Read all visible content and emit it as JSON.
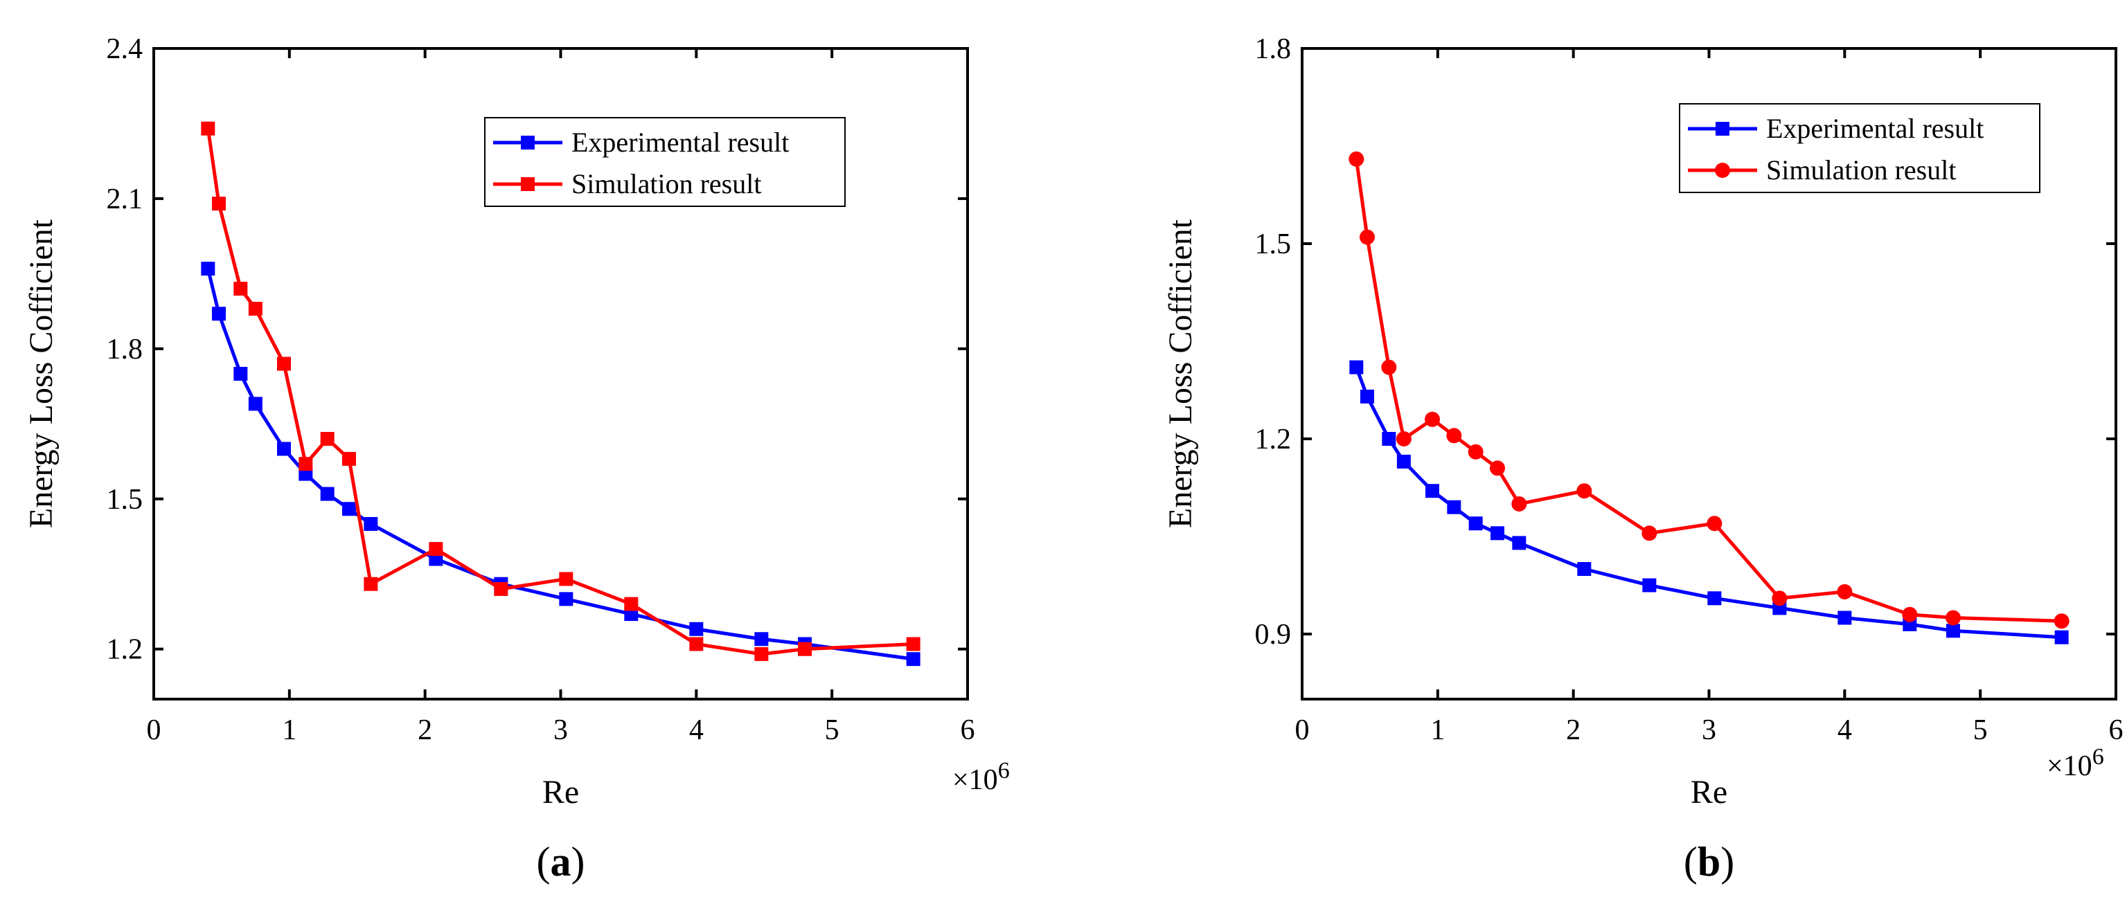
{
  "chart_data": [
    {
      "type": "line",
      "panel_label": "a",
      "xlabel": "Re",
      "ylabel": "Energy Loss Cofficient",
      "x_multiplier": "×10",
      "x_multiplier_exp": "6",
      "xlim": [
        0,
        6
      ],
      "ylim": [
        1.1,
        2.4
      ],
      "xticks": [
        0,
        1,
        2,
        3,
        4,
        5,
        6
      ],
      "yticks": [
        1.2,
        1.5,
        1.8,
        2.1,
        2.4
      ],
      "ytick_labels": [
        "1.2",
        "1.5",
        "1.8",
        "2.1",
        "2.4"
      ],
      "legend_position": "top-right",
      "series": [
        {
          "name": "Experimental result",
          "color": "#0000ff",
          "marker": "square",
          "x": [
            0.4,
            0.48,
            0.64,
            0.75,
            0.96,
            1.12,
            1.28,
            1.44,
            1.6,
            2.08,
            2.56,
            3.04,
            3.52,
            4.0,
            4.48,
            4.8,
            5.6
          ],
          "y": [
            1.96,
            1.87,
            1.75,
            1.69,
            1.6,
            1.55,
            1.51,
            1.48,
            1.45,
            1.38,
            1.33,
            1.3,
            1.27,
            1.24,
            1.22,
            1.21,
            1.18
          ]
        },
        {
          "name": "Simulation    result",
          "color": "#ff0000",
          "marker": "square",
          "x": [
            0.4,
            0.48,
            0.64,
            0.75,
            0.96,
            1.12,
            1.28,
            1.44,
            1.6,
            2.08,
            2.56,
            3.04,
            3.52,
            4.0,
            4.48,
            4.8,
            5.6
          ],
          "y": [
            2.24,
            2.09,
            1.92,
            1.88,
            1.77,
            1.57,
            1.62,
            1.58,
            1.33,
            1.4,
            1.32,
            1.34,
            1.29,
            1.21,
            1.19,
            1.2,
            1.21
          ]
        }
      ]
    },
    {
      "type": "line",
      "panel_label": "b",
      "xlabel": "Re",
      "ylabel": "Energy Loss Cofficient",
      "x_multiplier": "×10",
      "x_multiplier_exp": "6",
      "xlim": [
        0,
        6
      ],
      "ylim": [
        0.8,
        1.8
      ],
      "xticks": [
        0,
        1,
        2,
        3,
        4,
        5,
        6
      ],
      "yticks": [
        0.9,
        1.2,
        1.5,
        1.8
      ],
      "ytick_labels": [
        "0.9",
        "1.2",
        "1.5",
        "1.8"
      ],
      "legend_position": "top-right",
      "series": [
        {
          "name": "Experimental result",
          "color": "#0000ff",
          "marker": "square",
          "x": [
            0.4,
            0.48,
            0.64,
            0.75,
            0.96,
            1.12,
            1.28,
            1.44,
            1.6,
            2.08,
            2.56,
            3.04,
            3.52,
            4.0,
            4.48,
            4.8,
            5.6
          ],
          "y": [
            1.31,
            1.265,
            1.2,
            1.165,
            1.12,
            1.095,
            1.07,
            1.055,
            1.04,
            1.0,
            0.975,
            0.955,
            0.94,
            0.925,
            0.915,
            0.905,
            0.895
          ]
        },
        {
          "name": "Simulation    result",
          "color": "#ff0000",
          "marker": "circle",
          "x": [
            0.4,
            0.48,
            0.64,
            0.75,
            0.96,
            1.12,
            1.28,
            1.44,
            1.6,
            2.08,
            2.56,
            3.04,
            3.52,
            4.0,
            4.48,
            4.8,
            5.6
          ],
          "y": [
            1.63,
            1.51,
            1.31,
            1.2,
            1.23,
            1.205,
            1.18,
            1.155,
            1.1,
            1.12,
            1.055,
            1.07,
            0.955,
            0.965,
            0.93,
            0.925,
            0.92
          ]
        }
      ]
    }
  ]
}
